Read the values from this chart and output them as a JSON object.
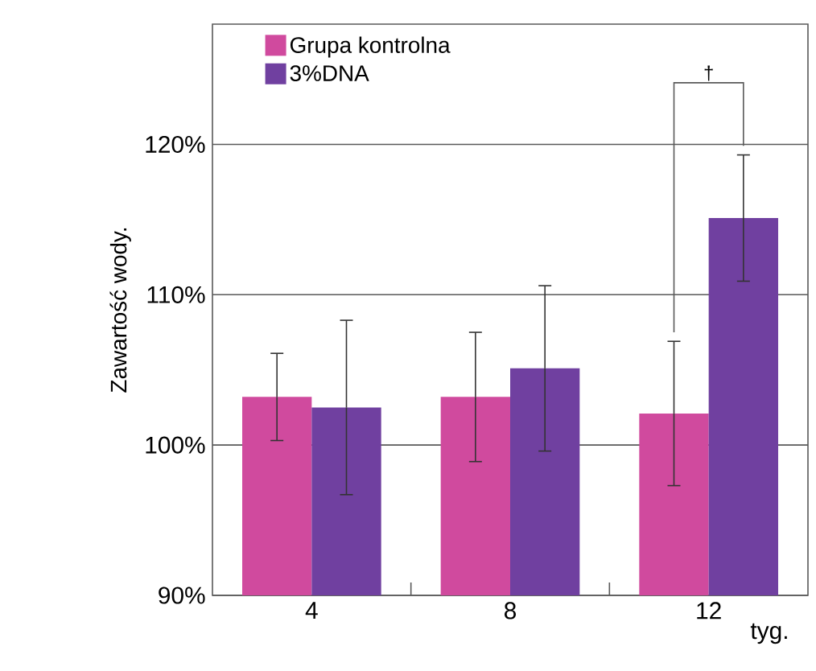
{
  "chart_data": {
    "type": "bar",
    "categories": [
      "4",
      "8",
      "12"
    ],
    "xlabel": "tyg.",
    "ylabel": "Zawartość wody.",
    "series": [
      {
        "name": "Grupa kontrolna",
        "color": "#d04a9e",
        "values": [
          103.2,
          103.2,
          102.1
        ],
        "errors": [
          2.9,
          4.3,
          4.8
        ]
      },
      {
        "name": "3%DNA",
        "color": "#7040a0",
        "values": [
          102.5,
          105.1,
          115.1
        ],
        "errors": [
          5.8,
          5.5,
          4.2
        ]
      }
    ],
    "ylim": [
      90,
      128
    ],
    "yticks": [
      {
        "value": 90,
        "label": "90%"
      },
      {
        "value": 100,
        "label": "100%"
      },
      {
        "value": 110,
        "label": "110%"
      },
      {
        "value": 120,
        "label": "120%"
      }
    ],
    "grid": "y",
    "legend": "top left",
    "annotations": [
      "†"
    ]
  }
}
